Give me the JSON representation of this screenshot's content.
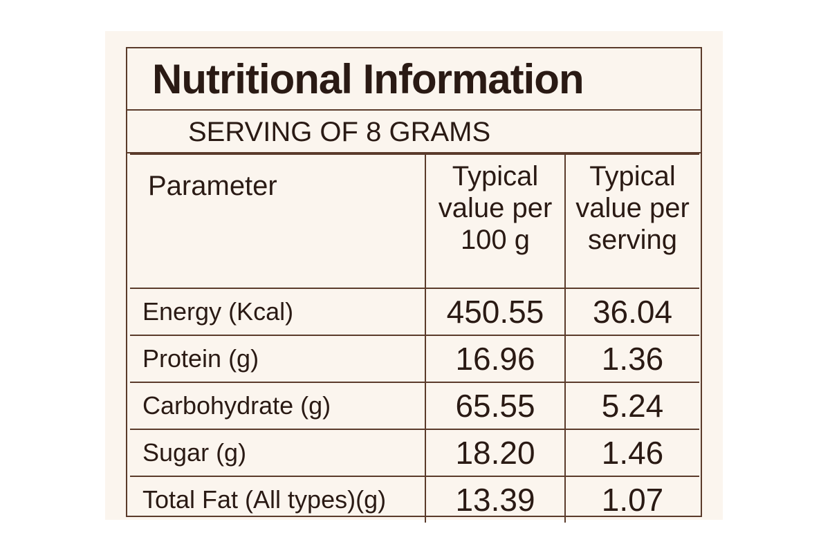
{
  "header": {
    "title": "Nutritional Information",
    "subtitle": "SERVING OF 8 GRAMS"
  },
  "table": {
    "columns": [
      "Parameter",
      "Typical value per 100 g",
      "Typical value per serving"
    ],
    "rows": [
      [
        "Energy (Kcal)",
        "450.55",
        "36.04"
      ],
      [
        "Protein (g)",
        "16.96",
        "1.36"
      ],
      [
        "Carbohydrate (g)",
        "65.55",
        "5.24"
      ],
      [
        "Sugar (g)",
        "18.20",
        "1.46"
      ],
      [
        "Total Fat (All types)(g)",
        "13.39",
        "1.07"
      ]
    ]
  }
}
